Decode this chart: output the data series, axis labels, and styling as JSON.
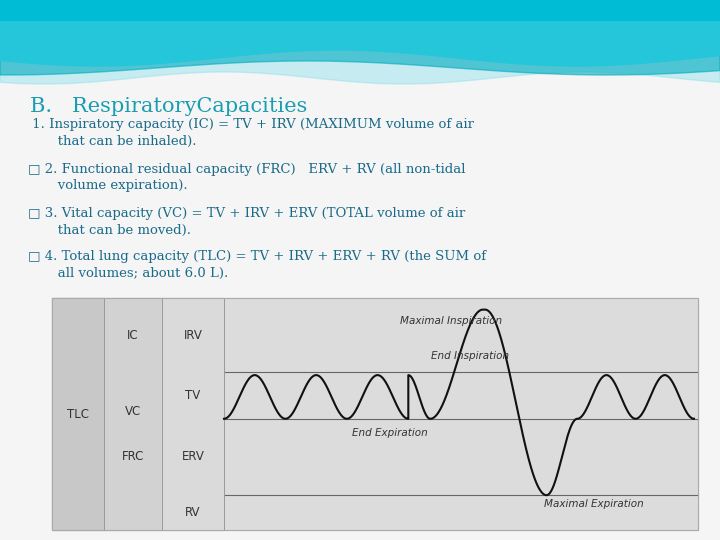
{
  "title": "B.   RespiratoryCapacities",
  "title_color": "#1a9db0",
  "title_fontsize": 15,
  "slide_bg": "#f5f5f5",
  "bullet1_sym": "✛",
  "bullet1": " 1. Inspiratory capacity (IC) = TV + IRV (MAXIMUM volume of air\n       that can be inhaled).",
  "bullet2": "□ 2. Functional residual capacity (FRC)   ERV + RV (all non-tidal\n       volume expiration).",
  "bullet3": "□ 3. Vital capacity (VC) = TV + IRV + ERV (TOTAL volume of air\n       that can be moved).",
  "bullet4": "□ 4. Total lung capacity (TLC) = TV + IRV + ERV + RV (the SUM of\n       all volumes; about 6.0 L).",
  "text_color": "#1a6b8a",
  "text_fontsize": 9.5,
  "diagram_bg": "#dcdcdc",
  "panel1_bg": "#c8c8c8",
  "panel2_bg": "#d2d2d2",
  "panel3_bg": "#dadada",
  "wave_line_color": "#111111",
  "line_color": "#666666",
  "label_color": "#333333",
  "label_fontsize": 7.5,
  "panel_label_fontsize": 8.5
}
